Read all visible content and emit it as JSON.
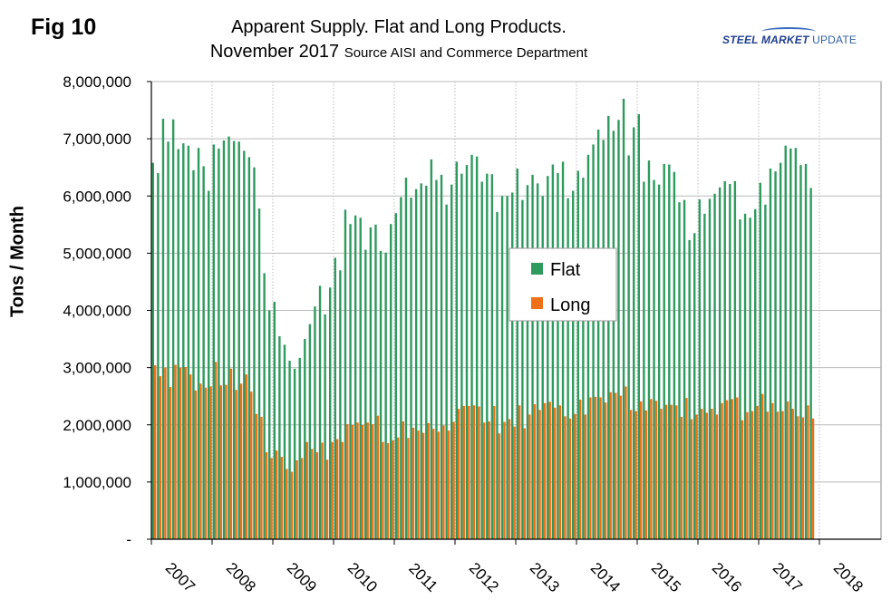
{
  "figure_label": "Fig 10",
  "title_line1": "Apparent Supply. Flat and Long Products.",
  "title_line2": "November 2017",
  "source": "Source AISI and Commerce Department",
  "brand": {
    "bold": "STEEL MARKET",
    "thin": "UPDATE"
  },
  "colors": {
    "flat": "#2e9a5e",
    "long": "#f07018",
    "grid": "#bbbbbb"
  },
  "chart_data": {
    "type": "bar",
    "ylabel": "Tons / Month",
    "ylim": [
      0,
      8000000
    ],
    "yticks": [
      0,
      1000000,
      2000000,
      3000000,
      4000000,
      5000000,
      6000000,
      7000000,
      8000000
    ],
    "ytick_labels": [
      "-",
      "1,000,000",
      "2,000,000",
      "3,000,000",
      "4,000,000",
      "5,000,000",
      "6,000,000",
      "7,000,000",
      "8,000,000"
    ],
    "xtick_labels": [
      "2007",
      "2008",
      "2009",
      "2010",
      "2011",
      "2012",
      "2013",
      "2014",
      "2015",
      "2016",
      "2017",
      "2018"
    ],
    "legend_position": "center",
    "series": [
      {
        "name": "Flat",
        "values": [
          6580000,
          6400000,
          7350000,
          6950000,
          7340000,
          6820000,
          6920000,
          6880000,
          6450000,
          6840000,
          6520000,
          6090000,
          6900000,
          6830000,
          6970000,
          7040000,
          6960000,
          6950000,
          6790000,
          6680000,
          6500000,
          5780000,
          4650000,
          4000000,
          4150000,
          3550000,
          3400000,
          3120000,
          2980000,
          3170000,
          3500000,
          3760000,
          4070000,
          4430000,
          3930000,
          4400000,
          4920000,
          4700000,
          5760000,
          5510000,
          5660000,
          5620000,
          5060000,
          5450000,
          5500000,
          5040000,
          5010000,
          5510000,
          5700000,
          5980000,
          6320000,
          5970000,
          6120000,
          6220000,
          6180000,
          6640000,
          6280000,
          6370000,
          5850000,
          6200000,
          6600000,
          6390000,
          6540000,
          6720000,
          6690000,
          6250000,
          6390000,
          6380000,
          5720000,
          6000000,
          6000000,
          6060000,
          6480000,
          5930000,
          6190000,
          6370000,
          6220000,
          6000000,
          6350000,
          6550000,
          6400000,
          6600000,
          5960000,
          6090000,
          6440000,
          6320000,
          6720000,
          6900000,
          7160000,
          6980000,
          7400000,
          7140000,
          7330000,
          7700000,
          6710000,
          7200000,
          7430000,
          6250000,
          6620000,
          6280000,
          6200000,
          6560000,
          6550000,
          6420000,
          5890000,
          5930000,
          5230000,
          5350000,
          5940000,
          5690000,
          5950000,
          6040000,
          6150000,
          6260000,
          6210000,
          6260000,
          5590000,
          5690000,
          5620000,
          5770000,
          6230000,
          5850000,
          6480000,
          6430000,
          6580000,
          6880000,
          6830000,
          6840000,
          6540000,
          6560000,
          6140000
        ]
      },
      {
        "name": "Long",
        "values": [
          3040000,
          2850000,
          3000000,
          2660000,
          3050000,
          3000000,
          3010000,
          2880000,
          2600000,
          2720000,
          2650000,
          2670000,
          3100000,
          2690000,
          2700000,
          2980000,
          2610000,
          2720000,
          2880000,
          2580000,
          2190000,
          2140000,
          1520000,
          1420000,
          1550000,
          1440000,
          1230000,
          1180000,
          1380000,
          1420000,
          1700000,
          1580000,
          1520000,
          1690000,
          1390000,
          1700000,
          1750000,
          1700000,
          2010000,
          2000000,
          2040000,
          2000000,
          2040000,
          2010000,
          2160000,
          1700000,
          1680000,
          1730000,
          1780000,
          2060000,
          1770000,
          1950000,
          1900000,
          1860000,
          2030000,
          1930000,
          1880000,
          1990000,
          1900000,
          2050000,
          2280000,
          2330000,
          2330000,
          2340000,
          2320000,
          2040000,
          2060000,
          2330000,
          1850000,
          2050000,
          2100000,
          1970000,
          2340000,
          1940000,
          2180000,
          2360000,
          2260000,
          2380000,
          2400000,
          2300000,
          2340000,
          2150000,
          2110000,
          2190000,
          2440000,
          2180000,
          2480000,
          2490000,
          2480000,
          2390000,
          2570000,
          2560000,
          2510000,
          2670000,
          2260000,
          2240000,
          2410000,
          2250000,
          2450000,
          2420000,
          2280000,
          2350000,
          2350000,
          2340000,
          2140000,
          2470000,
          2100000,
          2180000,
          2280000,
          2210000,
          2280000,
          2180000,
          2380000,
          2430000,
          2450000,
          2480000,
          2080000,
          2220000,
          2240000,
          2330000,
          2540000,
          2230000,
          2380000,
          2230000,
          2240000,
          2410000,
          2280000,
          2150000,
          2130000,
          2340000,
          2110000
        ]
      }
    ]
  }
}
